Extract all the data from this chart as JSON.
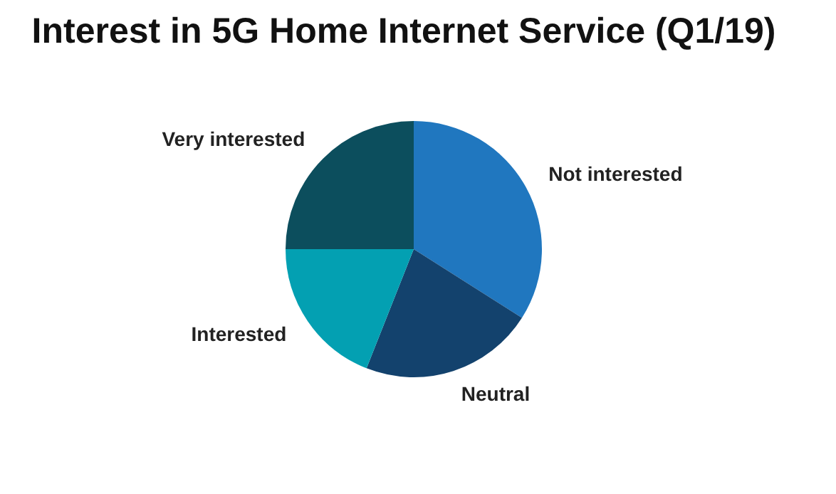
{
  "chart_data": {
    "type": "pie",
    "title": "Interest in 5G Home Internet Service (Q1/19)",
    "categories": [
      "Not interested",
      "Neutral",
      "Interested",
      "Very interested"
    ],
    "values": [
      34,
      22,
      19,
      25
    ],
    "colors": [
      "#2077bf",
      "#13426d",
      "#03a0b2",
      "#0c4e5d"
    ],
    "legend": false
  }
}
